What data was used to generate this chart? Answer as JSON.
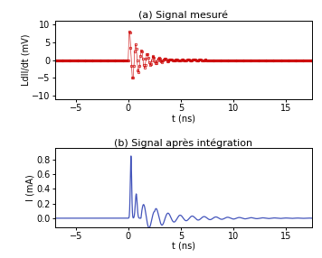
{
  "title_a": "(a) Signal mesuré",
  "title_b": "(b) Signal après intégration",
  "xlabel": "t (ns)",
  "ylabel_a": "LdII/dt (mV)",
  "ylabel_b": "I (mA)",
  "xlim": [
    -7,
    17.5
  ],
  "ylim_a": [
    -11,
    11
  ],
  "ylim_b": [
    -0.12,
    0.95
  ],
  "yticks_a": [
    -10,
    -5,
    0,
    5,
    10
  ],
  "yticks_b": [
    0.0,
    0.2,
    0.4,
    0.6,
    0.8
  ],
  "xticks": [
    -5,
    0,
    5,
    10,
    15
  ],
  "color_a": "#cc0000",
  "color_b": "#4455bb",
  "title_fontsize": 8,
  "label_fontsize": 7,
  "tick_fontsize": 7
}
